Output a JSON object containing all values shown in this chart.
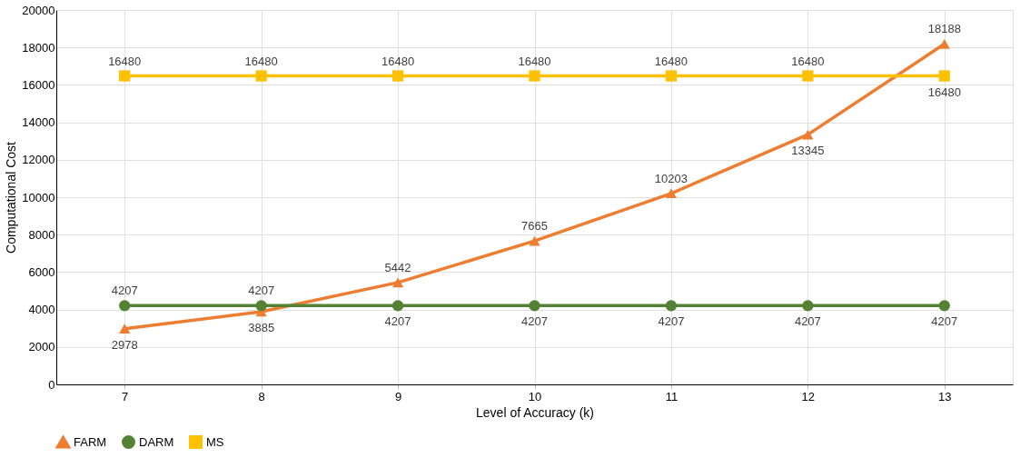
{
  "chart_data": {
    "type": "line",
    "xlabel": "Level of Accuracy (k)",
    "ylabel": "Computational Cost",
    "categories": [
      "7",
      "8",
      "9",
      "10",
      "11",
      "12",
      "13"
    ],
    "series": [
      {
        "name": "FARM",
        "color": "#ed7d31",
        "marker": "triangle",
        "values": [
          2978,
          3885,
          5442,
          7665,
          10203,
          13345,
          18188
        ]
      },
      {
        "name": "DARM",
        "color": "#548235",
        "marker": "circle",
        "values": [
          4207,
          4207,
          4207,
          4207,
          4207,
          4207,
          4207
        ]
      },
      {
        "name": "MS",
        "color": "#ffc000",
        "marker": "square",
        "values": [
          16480,
          16480,
          16480,
          16480,
          16480,
          16480,
          16480
        ]
      }
    ],
    "ylim": [
      0,
      20000
    ],
    "yticks": [
      0,
      2000,
      4000,
      6000,
      8000,
      10000,
      12000,
      14000,
      16000,
      18000,
      20000
    ],
    "grid": true,
    "legend": "bottom",
    "data_labels": true,
    "line_style": "solid"
  }
}
